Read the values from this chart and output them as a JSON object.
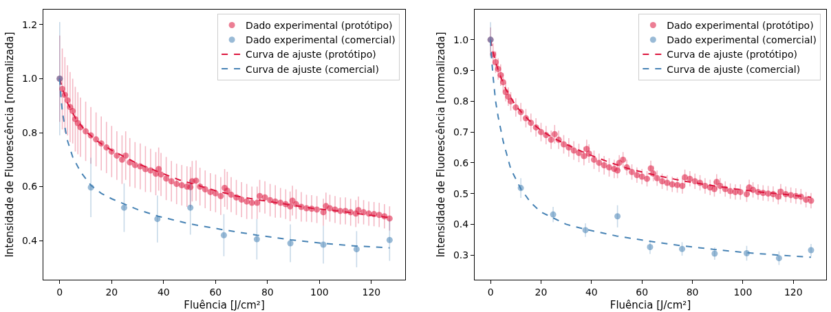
{
  "chart_data": [
    {
      "type": "scatter",
      "xlabel": "Fluência [J/cm²]",
      "ylabel": "Intensidade de Fluorescência [normalizada]",
      "xlim": [
        -6.3,
        133
      ],
      "xticks": [
        0,
        20,
        40,
        60,
        80,
        100,
        120
      ],
      "ylim": [
        0.255,
        1.256
      ],
      "yticks": [
        0.4,
        0.6,
        0.8,
        {
          "value": 1.0,
          "label": "1.0"
        },
        1.2
      ],
      "grid": false,
      "legend": "top right",
      "series": [
        {
          "name": "Dado experimental (protótipo)",
          "marker": "circle",
          "color": "#dc143c",
          "x": [
            0,
            1,
            2,
            3,
            4,
            5,
            6,
            7,
            8,
            10,
            12,
            14,
            16,
            18,
            20,
            22,
            24,
            25.4,
            27,
            29,
            31,
            33,
            35,
            37,
            38.1,
            39,
            41,
            43,
            45,
            47,
            49,
            50.3,
            51,
            52.5,
            54,
            56,
            58,
            60,
            62,
            63.5,
            64.5,
            66,
            68,
            70,
            72,
            74,
            76,
            77,
            79,
            81,
            83,
            85,
            87,
            88.7,
            89.6,
            91,
            93,
            95,
            97,
            99,
            101.5,
            102.5,
            104,
            106,
            108,
            110,
            112,
            114,
            115,
            117,
            119,
            121,
            123,
            125,
            127
          ],
          "values": [
            1.0,
            0.962,
            0.94,
            0.92,
            0.895,
            0.88,
            0.85,
            0.835,
            0.82,
            0.805,
            0.79,
            0.775,
            0.76,
            0.745,
            0.73,
            0.715,
            0.7,
            0.715,
            0.69,
            0.68,
            0.675,
            0.665,
            0.66,
            0.648,
            0.665,
            0.645,
            0.63,
            0.62,
            0.61,
            0.605,
            0.6,
            0.598,
            0.62,
            0.622,
            0.6,
            0.59,
            0.58,
            0.575,
            0.565,
            0.595,
            0.585,
            0.57,
            0.56,
            0.552,
            0.545,
            0.54,
            0.54,
            0.565,
            0.56,
            0.55,
            0.545,
            0.54,
            0.535,
            0.527,
            0.548,
            0.535,
            0.525,
            0.52,
            0.518,
            0.515,
            0.505,
            0.528,
            0.52,
            0.515,
            0.51,
            0.51,
            0.505,
            0.5,
            0.513,
            0.505,
            0.5,
            0.498,
            0.495,
            0.49,
            0.482
          ],
          "errors": [
            0.16,
            0.15,
            0.14,
            0.13,
            0.13,
            0.12,
            0.12,
            0.115,
            0.11,
            0.11,
            0.105,
            0.1,
            0.1,
            0.095,
            0.095,
            0.09,
            0.09,
            0.09,
            0.09,
            0.085,
            0.085,
            0.085,
            0.08,
            0.08,
            0.08,
            0.08,
            0.08,
            0.075,
            0.075,
            0.075,
            0.075,
            0.075,
            0.075,
            0.075,
            0.07,
            0.07,
            0.07,
            0.07,
            0.07,
            0.07,
            0.07,
            0.065,
            0.065,
            0.065,
            0.065,
            0.06,
            0.06,
            0.06,
            0.06,
            0.06,
            0.06,
            0.055,
            0.055,
            0.055,
            0.055,
            0.055,
            0.055,
            0.05,
            0.05,
            0.05,
            0.05,
            0.05,
            0.05,
            0.05,
            0.05,
            0.05,
            0.05,
            0.05,
            0.05,
            0.045,
            0.045,
            0.045,
            0.045,
            0.045,
            0.045
          ]
        },
        {
          "name": "Dado experimental (comercial)",
          "marker": "circle",
          "color": "#4682b4",
          "x": [
            0,
            12,
            24.8,
            37.6,
            50.3,
            63.2,
            75.9,
            88.8,
            101.5,
            114.3,
            127
          ],
          "values": [
            1.0,
            0.597,
            0.522,
            0.48,
            0.522,
            0.42,
            0.405,
            0.39,
            0.385,
            0.368,
            0.402
          ],
          "errors": [
            0.21,
            0.11,
            0.09,
            0.087,
            0.1,
            0.078,
            0.075,
            0.07,
            0.07,
            0.067,
            0.077
          ]
        },
        {
          "name": "Curva de ajuste (protótipo)",
          "type": "line",
          "line_style": "dashed",
          "color": "#dc143c",
          "x": [
            0,
            1,
            3,
            6,
            10,
            15,
            20,
            25,
            30,
            38,
            46,
            53,
            60,
            68,
            77,
            87,
            97,
            107,
            117,
            127
          ],
          "values": [
            1.0,
            0.965,
            0.91,
            0.855,
            0.805,
            0.765,
            0.735,
            0.71,
            0.685,
            0.655,
            0.625,
            0.605,
            0.585,
            0.565,
            0.55,
            0.535,
            0.52,
            0.51,
            0.497,
            0.485
          ]
        },
        {
          "name": "Curva de ajuste (comercial)",
          "type": "line",
          "line_style": "dashed",
          "color": "#4682b4",
          "x": [
            0,
            0.5,
            1,
            2,
            3,
            5,
            8,
            12,
            16,
            20,
            25,
            30,
            38,
            50,
            63,
            76,
            89,
            101,
            114,
            127
          ],
          "values": [
            1.0,
            0.93,
            0.88,
            0.82,
            0.77,
            0.71,
            0.655,
            0.605,
            0.575,
            0.555,
            0.535,
            0.515,
            0.49,
            0.462,
            0.44,
            0.42,
            0.403,
            0.39,
            0.38,
            0.373
          ]
        }
      ]
    },
    {
      "type": "scatter",
      "xlabel": "Fluência [J/cm²]",
      "ylabel": "Intensidade de Fluorescência [normalizada]",
      "xlim": [
        -6.3,
        133
      ],
      "xticks": [
        0,
        20,
        40,
        60,
        80,
        100,
        120
      ],
      "ylim": [
        0.22,
        1.098
      ],
      "yticks": [
        0.3,
        0.4,
        0.5,
        0.6,
        0.7,
        0.8,
        0.9,
        {
          "value": 1.0,
          "label": "1.0"
        }
      ],
      "grid": false,
      "legend": "top right",
      "series": [
        {
          "name": "Dado experimental (protótipo)",
          "marker": "circle",
          "color": "#dc143c",
          "x": [
            0,
            1,
            2,
            3,
            4,
            5,
            6,
            7,
            8,
            10,
            12,
            14,
            16,
            18,
            20,
            22,
            24,
            25.4,
            27,
            29,
            31,
            33,
            35,
            37,
            38.1,
            39,
            41,
            43,
            45,
            47,
            49,
            50.3,
            51,
            52.5,
            54,
            56,
            58,
            60,
            62,
            63.5,
            64.5,
            66,
            68,
            70,
            72,
            74,
            76,
            77,
            79,
            81,
            83,
            85,
            87,
            88.7,
            89.6,
            91,
            93,
            95,
            97,
            99,
            101.5,
            102.5,
            104,
            106,
            108,
            110,
            112,
            114,
            115,
            117,
            119,
            121,
            123,
            125,
            127
          ],
          "values": [
            1.0,
            0.953,
            0.927,
            0.905,
            0.885,
            0.862,
            0.83,
            0.815,
            0.8,
            0.78,
            0.765,
            0.745,
            0.73,
            0.715,
            0.7,
            0.69,
            0.675,
            0.693,
            0.675,
            0.66,
            0.65,
            0.64,
            0.632,
            0.622,
            0.645,
            0.63,
            0.61,
            0.6,
            0.592,
            0.585,
            0.58,
            0.575,
            0.6,
            0.61,
            0.585,
            0.57,
            0.56,
            0.555,
            0.548,
            0.582,
            0.565,
            0.55,
            0.54,
            0.535,
            0.53,
            0.528,
            0.525,
            0.553,
            0.548,
            0.54,
            0.535,
            0.525,
            0.52,
            0.515,
            0.538,
            0.525,
            0.515,
            0.508,
            0.505,
            0.505,
            0.498,
            0.52,
            0.512,
            0.505,
            0.502,
            0.5,
            0.498,
            0.49,
            0.506,
            0.498,
            0.495,
            0.492,
            0.49,
            0.48,
            0.477
          ],
          "errors": [
            0.04,
            0.035,
            0.035,
            0.035,
            0.035,
            0.03,
            0.03,
            0.03,
            0.03,
            0.03,
            0.03,
            0.03,
            0.03,
            0.03,
            0.03,
            0.03,
            0.03,
            0.03,
            0.03,
            0.03,
            0.03,
            0.03,
            0.03,
            0.03,
            0.03,
            0.03,
            0.03,
            0.03,
            0.03,
            0.03,
            0.03,
            0.025,
            0.025,
            0.025,
            0.025,
            0.025,
            0.025,
            0.025,
            0.025,
            0.025,
            0.025,
            0.025,
            0.025,
            0.025,
            0.025,
            0.025,
            0.025,
            0.025,
            0.025,
            0.025,
            0.025,
            0.025,
            0.025,
            0.025,
            0.025,
            0.025,
            0.025,
            0.025,
            0.025,
            0.025,
            0.025,
            0.025,
            0.025,
            0.025,
            0.025,
            0.025,
            0.025,
            0.025,
            0.025,
            0.025,
            0.025,
            0.025,
            0.025,
            0.025,
            0.025
          ]
        },
        {
          "name": "Dado experimental (comercial)",
          "marker": "circle",
          "color": "#4682b4",
          "x": [
            0,
            12,
            24.8,
            37.6,
            50.3,
            63.2,
            75.9,
            88.8,
            101.5,
            114.3,
            127
          ],
          "values": [
            1.0,
            0.518,
            0.432,
            0.381,
            0.426,
            0.326,
            0.32,
            0.305,
            0.306,
            0.29,
            0.316
          ],
          "errors": [
            0.057,
            0.032,
            0.025,
            0.022,
            0.036,
            0.022,
            0.022,
            0.02,
            0.024,
            0.022,
            0.02
          ]
        },
        {
          "name": "Curva de ajuste (protótipo)",
          "type": "line",
          "line_style": "dashed",
          "color": "#dc143c",
          "x": [
            0,
            1,
            3,
            6,
            10,
            15,
            20,
            25,
            30,
            38,
            46,
            53,
            60,
            68,
            77,
            87,
            97,
            107,
            117,
            127
          ],
          "values": [
            1.0,
            0.96,
            0.9,
            0.84,
            0.785,
            0.74,
            0.705,
            0.68,
            0.66,
            0.63,
            0.605,
            0.585,
            0.57,
            0.555,
            0.54,
            0.527,
            0.515,
            0.505,
            0.497,
            0.488
          ]
        },
        {
          "name": "Curva de ajuste (comercial)",
          "type": "line",
          "line_style": "dashed",
          "color": "#4682b4",
          "x": [
            0,
            0.5,
            1,
            2,
            3,
            5,
            8,
            12,
            16,
            20,
            25,
            30,
            38,
            50,
            63,
            76,
            89,
            101,
            114,
            127
          ],
          "values": [
            1.0,
            0.93,
            0.88,
            0.8,
            0.75,
            0.67,
            0.58,
            0.515,
            0.47,
            0.44,
            0.42,
            0.4,
            0.383,
            0.362,
            0.345,
            0.33,
            0.318,
            0.308,
            0.3,
            0.293
          ]
        }
      ]
    }
  ]
}
